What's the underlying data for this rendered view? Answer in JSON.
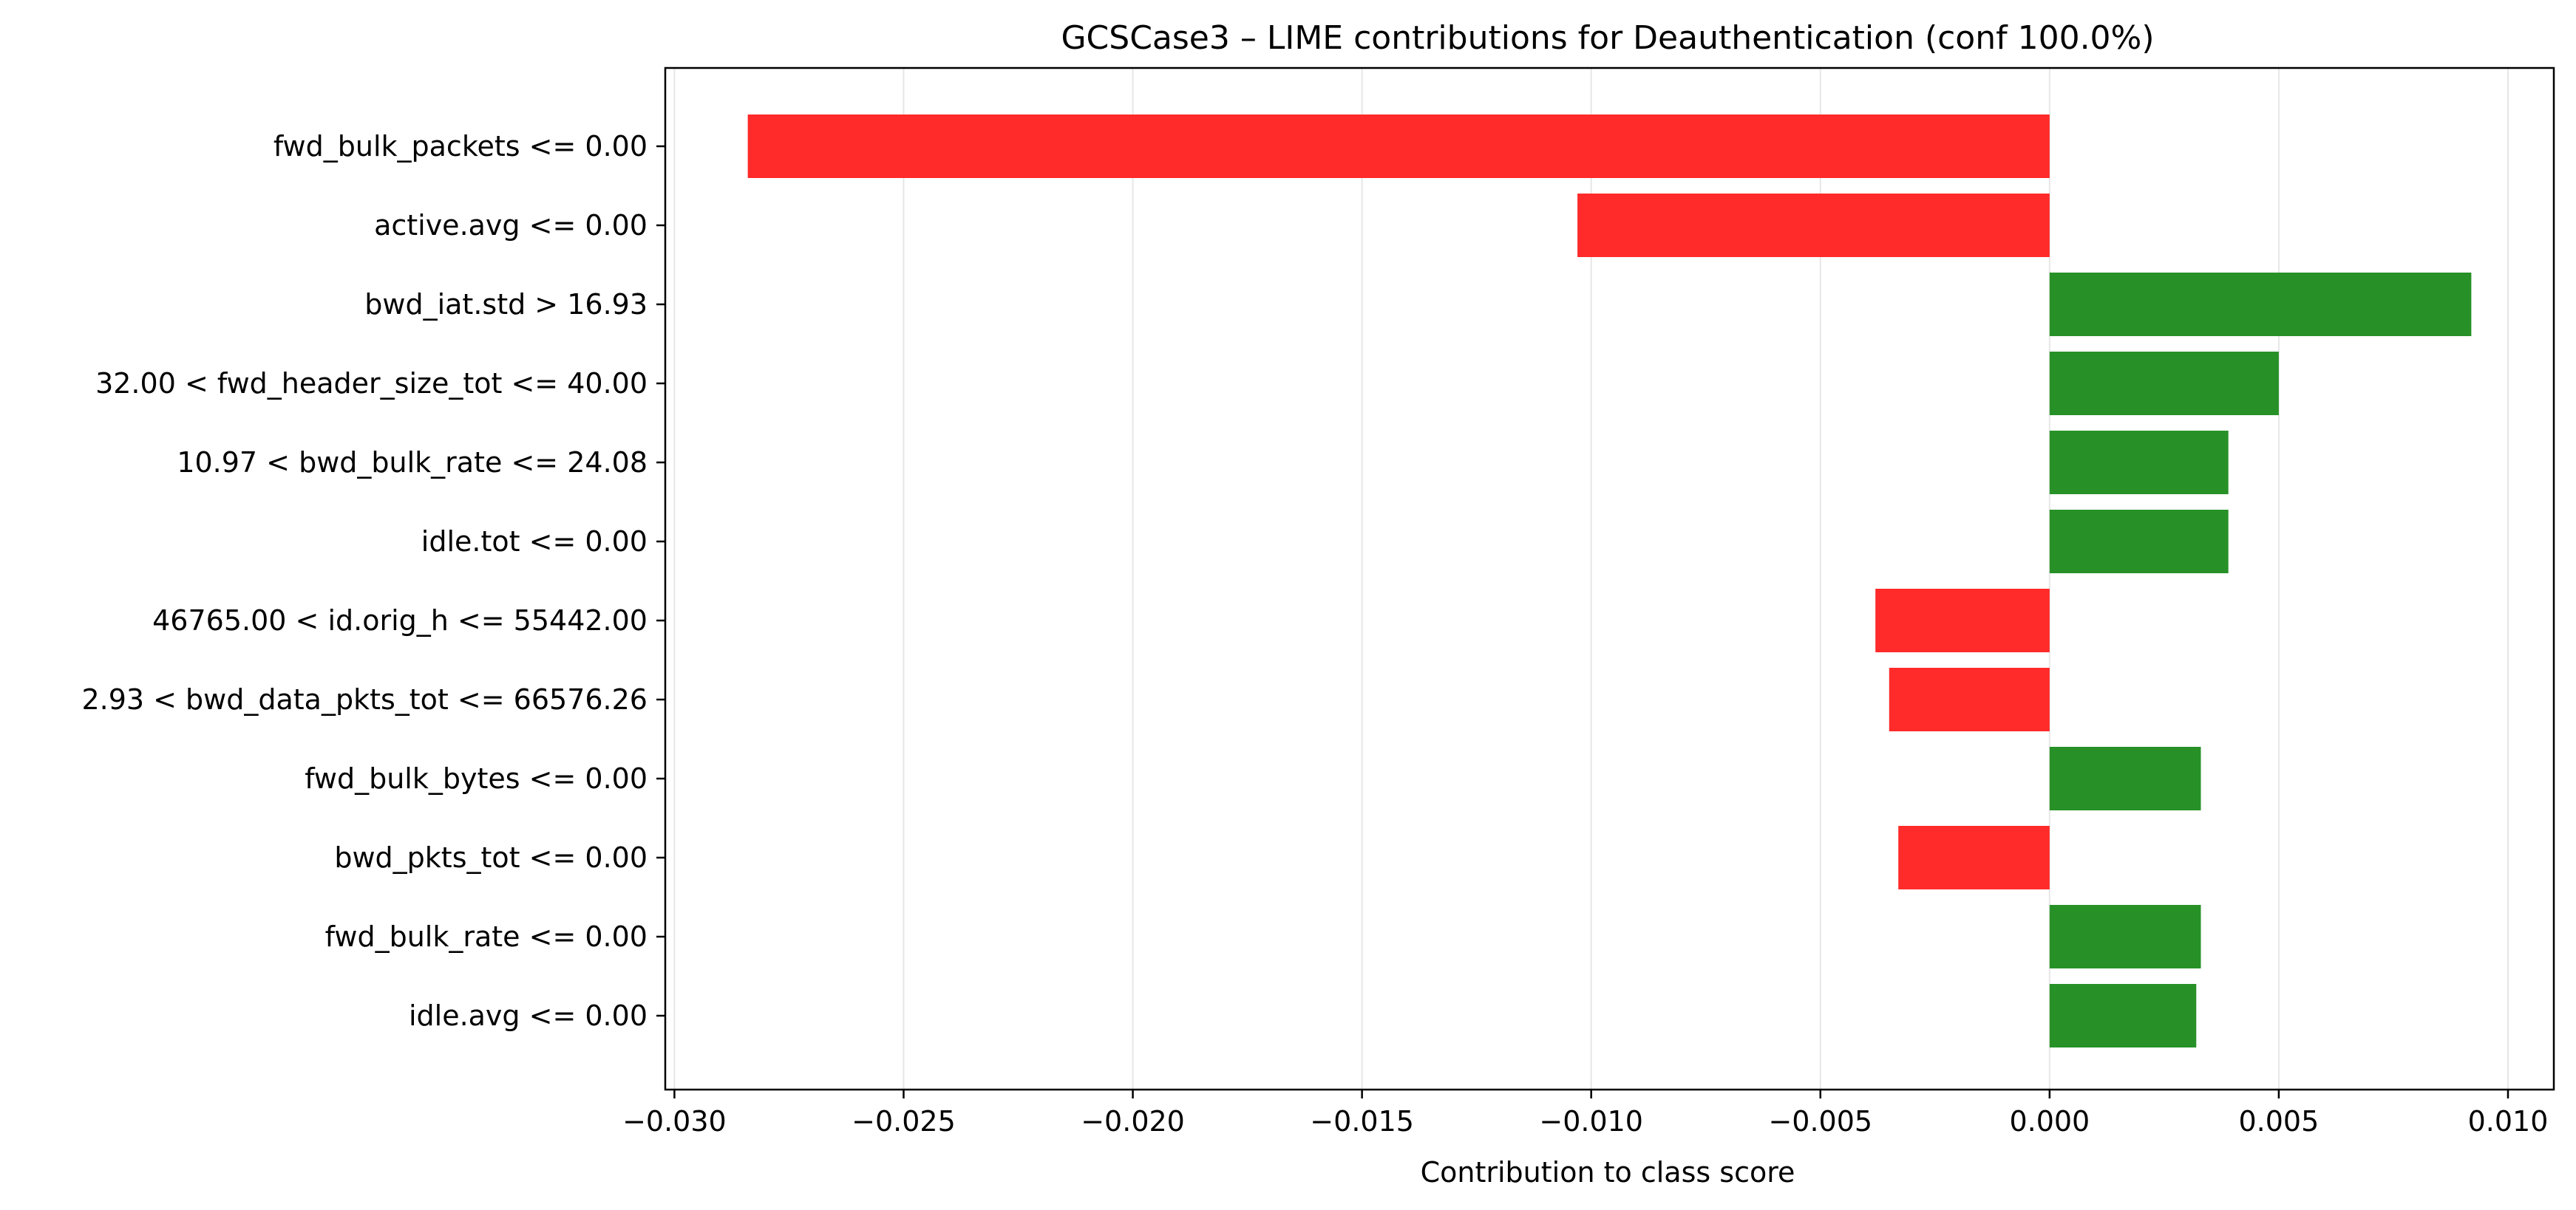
{
  "chart_data": {
    "type": "bar",
    "orientation": "horizontal",
    "title": "GCSCase3 – LIME contributions for Deauthentication (conf 100.0%)",
    "xlabel": "Contribution to class score",
    "ylabel": "",
    "xlim": [
      -0.0302,
      0.011
    ],
    "xticks": [
      -0.03,
      -0.025,
      -0.02,
      -0.015,
      -0.01,
      -0.005,
      0.0,
      0.005,
      0.01
    ],
    "xtick_labels": [
      "−0.030",
      "−0.025",
      "−0.020",
      "−0.015",
      "−0.010",
      "−0.005",
      "0.000",
      "0.005",
      "0.010"
    ],
    "grid": "x",
    "categories": [
      "fwd_bulk_packets <= 0.00",
      "active.avg <= 0.00",
      "bwd_iat.std > 16.93",
      "32.00 < fwd_header_size_tot <= 40.00",
      "10.97 < bwd_bulk_rate <= 24.08",
      "idle.tot <= 0.00",
      "46765.00 < id.orig_h <= 55442.00",
      "2.93 < bwd_data_pkts_tot <= 66576.26",
      "fwd_bulk_bytes <= 0.00",
      "bwd_pkts_tot <= 0.00",
      "fwd_bulk_rate <= 0.00",
      "idle.avg <= 0.00"
    ],
    "values": [
      -0.0284,
      -0.0103,
      0.0092,
      0.005,
      0.0039,
      0.0039,
      -0.0038,
      -0.0035,
      0.0033,
      -0.0033,
      0.0033,
      0.0032
    ],
    "colors": {
      "positive": "#279127",
      "negative": "#ff2a2a",
      "grid": "#e6e6e6",
      "axis": "#000000"
    }
  }
}
